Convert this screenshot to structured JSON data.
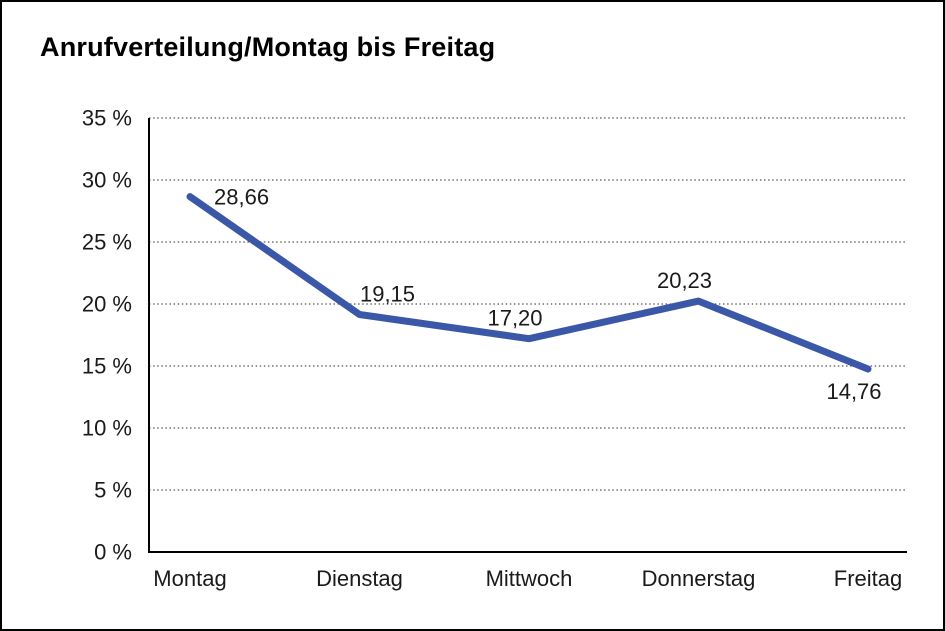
{
  "window": {
    "background": "#ffffff",
    "border_color": "#000000"
  },
  "chart": {
    "title": "Anrufverteilung/Montag bis Freitag"
  },
  "chart_data": {
    "type": "line",
    "title": "Anrufverteilung/Montag bis Freitag",
    "categories": [
      "Montag",
      "Dienstag",
      "Mittwoch",
      "Donnerstag",
      "Freitag"
    ],
    "values": [
      28.66,
      19.15,
      17.2,
      20.23,
      14.76
    ],
    "value_labels": [
      "28,66",
      "19,15",
      "17,20",
      "20,23",
      "14,76"
    ],
    "xlabel": "",
    "ylabel": "",
    "ylim": [
      0,
      35
    ],
    "ytick_step": 5,
    "ytick_labels": [
      "0 %",
      "5 %",
      "10 %",
      "15 %",
      "20 %",
      "25 %",
      "30 %",
      "35 %"
    ],
    "grid": "horizontal-dotted",
    "legend": "none",
    "line_color": "#3A57A8",
    "axis_color": "#000000",
    "gridline_color": "#555555",
    "text_color": "#1a1a1a",
    "decimal_separator": ","
  }
}
